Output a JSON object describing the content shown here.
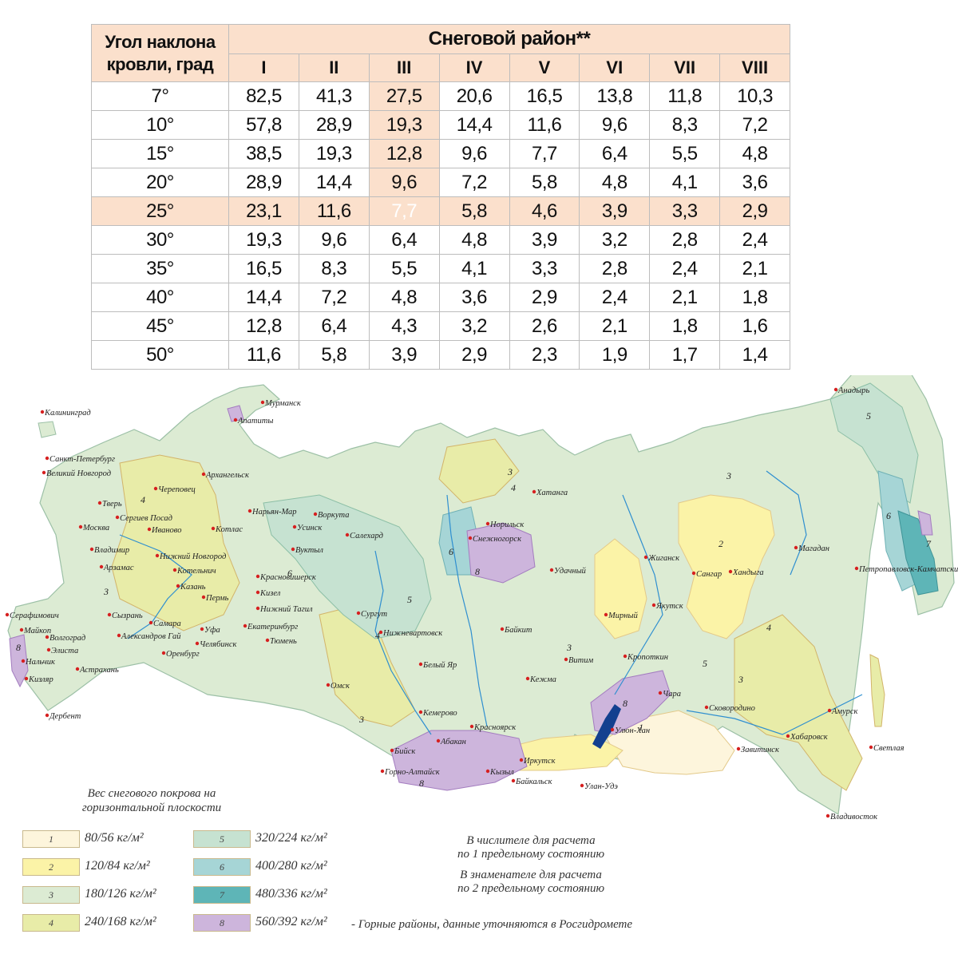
{
  "table": {
    "angle_header": [
      "Угол наклона",
      "кровли, град"
    ],
    "region_header": "Снеговой район**",
    "regions": [
      "I",
      "II",
      "III",
      "IV",
      "V",
      "VI",
      "VII",
      "VIII"
    ],
    "rows": [
      {
        "angle": "7°",
        "values": [
          "82,5",
          "41,3",
          "27,5",
          "20,6",
          "16,5",
          "13,8",
          "11,8",
          "10,3"
        ]
      },
      {
        "angle": "10°",
        "values": [
          "57,8",
          "28,9",
          "19,3",
          "14,4",
          "11,6",
          "9,6",
          "8,3",
          "7,2"
        ]
      },
      {
        "angle": "15°",
        "values": [
          "38,5",
          "19,3",
          "12,8",
          "9,6",
          "7,7",
          "6,4",
          "5,5",
          "4,8"
        ]
      },
      {
        "angle": "20°",
        "values": [
          "28,9",
          "14,4",
          "9,6",
          "7,2",
          "5,8",
          "4,8",
          "4,1",
          "3,6"
        ]
      },
      {
        "angle": "25°",
        "values": [
          "23,1",
          "11,6",
          "7,7",
          "5,8",
          "4,6",
          "3,9",
          "3,3",
          "2,9"
        ]
      },
      {
        "angle": "30°",
        "values": [
          "19,3",
          "9,6",
          "6,4",
          "4,8",
          "3,9",
          "3,2",
          "2,8",
          "2,4"
        ]
      },
      {
        "angle": "35°",
        "values": [
          "16,5",
          "8,3",
          "5,5",
          "4,1",
          "3,3",
          "2,8",
          "2,4",
          "2,1"
        ]
      },
      {
        "angle": "40°",
        "values": [
          "14,4",
          "7,2",
          "4,8",
          "3,6",
          "2,9",
          "2,4",
          "2,1",
          "1,8"
        ]
      },
      {
        "angle": "45°",
        "values": [
          "12,8",
          "6,4",
          "4,3",
          "3,2",
          "2,6",
          "2,1",
          "1,8",
          "1,6"
        ]
      },
      {
        "angle": "50°",
        "values": [
          "11,6",
          "5,8",
          "3,9",
          "2,9",
          "2,3",
          "1,9",
          "1,7",
          "1,4"
        ]
      }
    ],
    "highlight_row_angle": "25°",
    "highlight_region": "III",
    "colors": {
      "header_bg": "#fbe0cc",
      "highlight_cell": "#ec7125",
      "border": "#bdbdbd"
    }
  },
  "map": {
    "cities": [
      "Калининград",
      "Мурманск",
      "Апатиты",
      "Санкт-Петербург",
      "Великий Новгород",
      "Архангельск",
      "Череповец",
      "Тверь",
      "Сергиев Посад",
      "Иваново",
      "Котлас",
      "Нарьян-Мар",
      "Воркута",
      "Усинск",
      "Салехард",
      "Москва",
      "Владимир",
      "Нижний Новгород",
      "Вуктыл",
      "Арзамас",
      "Котельнич",
      "Красновишерск",
      "Казань",
      "Пермь",
      "Кизел",
      "Нижний Тагил",
      "Серафимович",
      "Сызрань",
      "Самара",
      "Волгоград",
      "Майкоп",
      "Александров Гай",
      "Уфа",
      "Екатеринбург",
      "Элиста",
      "Нальчик",
      "Астрахань",
      "Оренбург",
      "Челябинск",
      "Тюмень",
      "Кизляр",
      "Дербент",
      "Сургут",
      "Нижневартовск",
      "Омск",
      "Кемерово",
      "Бийск",
      "Горно-Алтайск",
      "Абакан",
      "Кызыл",
      "Красноярск",
      "Белый Яр",
      "Байкит",
      "Кежма",
      "Иркутск",
      "Байкальск",
      "Улан-Удэ",
      "Норильск",
      "Снежногорск",
      "Хатанга",
      "Удачный",
      "Мирный",
      "Витим",
      "Кропоткин",
      "Чара",
      "Улюн-Хан",
      "Жиганск",
      "Сангар",
      "Якутск",
      "Хандыга",
      "Магадан",
      "Анадырь",
      "Петропавловск-Камчатский",
      "Сковородино",
      "Амурск",
      "Хабаровск",
      "Завитинск",
      "Светлая",
      "Владивосток"
    ],
    "zone_colors": {
      "1": "#fdf5dc",
      "2": "#fbf3a7",
      "3": "#dcebd3",
      "4": "#e8eca8",
      "5": "#c6e2d1",
      "6": "#a6d5d6",
      "7": "#5eb5b7",
      "8": "#cdb5dc"
    },
    "water_color": "#2f8fd0"
  },
  "legend": {
    "title": [
      "Вес снегового покрова на",
      "горизонтальной плоскости"
    ],
    "items": [
      {
        "zone": "1",
        "text": "80/56 кг/м²"
      },
      {
        "zone": "2",
        "text": "120/84 кг/м²"
      },
      {
        "zone": "3",
        "text": "180/126 кг/м²"
      },
      {
        "zone": "4",
        "text": "240/168 кг/м²"
      },
      {
        "zone": "5",
        "text": "320/224 кг/м²"
      },
      {
        "zone": "6",
        "text": "400/280 кг/м²"
      },
      {
        "zone": "7",
        "text": "480/336 кг/м²"
      },
      {
        "zone": "8",
        "text": "560/392 кг/м²"
      }
    ],
    "mountain_note": "- Горные районы, данные уточняются в Росгидромете",
    "note_numerator": [
      "В числителе для расчета",
      "по 1 предельному состоянию"
    ],
    "note_denominator": [
      "В знаменателе для расчета",
      "по 2 предельному состоянию"
    ]
  }
}
